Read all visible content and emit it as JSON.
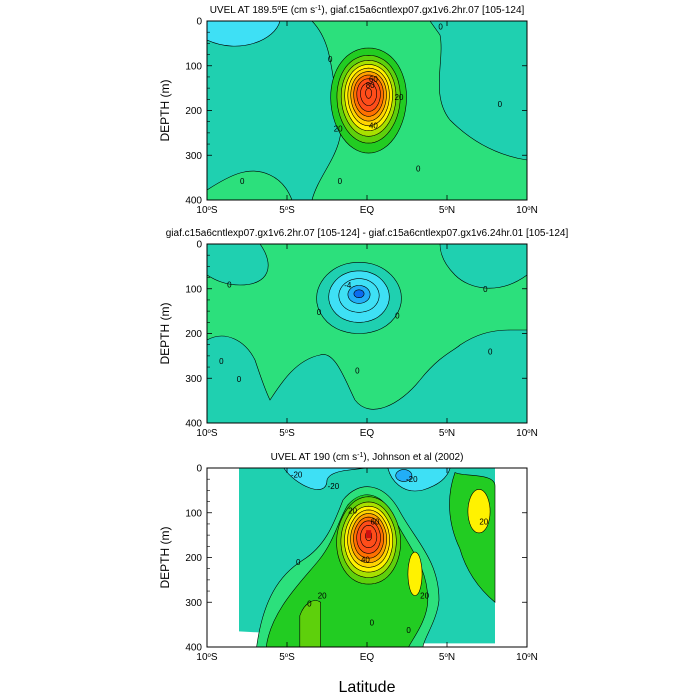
{
  "chart_data": [
    {
      "type": "contour",
      "title_pre": "UVEL AT 189.5",
      "title_deg": "o",
      "title_mid": "E (cm s",
      "title_sup": "-1",
      "title_post": "), giaf.c15a6cntlexp07.gx1v6.2hr.07 [105-124]",
      "ylabel": "DEPTH (m)",
      "xlim": [
        -10,
        10
      ],
      "ylim": [
        400,
        0
      ],
      "y_ticks": [
        "0",
        "100",
        "200",
        "300",
        "400"
      ],
      "x_ticks": [
        {
          "num": "10",
          "deg": "o",
          "hemi": "S"
        },
        {
          "num": "5",
          "deg": "o",
          "hemi": "S"
        },
        {
          "num": "EQ",
          "deg": "",
          "hemi": ""
        },
        {
          "num": "5",
          "deg": "o",
          "hemi": "N"
        },
        {
          "num": "10",
          "deg": "o",
          "hemi": "N"
        }
      ],
      "jet": {
        "lat": 0.1,
        "depth": 160,
        "peak": 100,
        "lat_sigma": 1.1,
        "depth_sigma": 55,
        "interval": 10
      },
      "contour_labels": [
        {
          "text": "0",
          "lat": 4.6,
          "depth": 12
        },
        {
          "text": "0",
          "lat": -2.3,
          "depth": 85
        },
        {
          "text": "0",
          "lat": 8.3,
          "depth": 185
        },
        {
          "text": "0",
          "lat": -7.8,
          "depth": 358
        },
        {
          "text": "0",
          "lat": -1.7,
          "depth": 358
        },
        {
          "text": "0",
          "lat": 3.2,
          "depth": 330
        },
        {
          "text": "20",
          "lat": 2.0,
          "depth": 170
        },
        {
          "text": "20",
          "lat": -1.8,
          "depth": 240
        },
        {
          "text": "40",
          "lat": 0.4,
          "depth": 233
        },
        {
          "text": "60",
          "lat": 0.4,
          "depth": 130
        },
        {
          "text": "80",
          "lat": 0.2,
          "depth": 143
        }
      ]
    },
    {
      "type": "contour",
      "title_pre": "giaf.c15a6cntlexp07.gx1v6.2hr.07 [105-124] - giaf.c15a6cntlexp07.gx1v6.24hr.01 [105-124]",
      "title_deg": "",
      "title_mid": "",
      "title_sup": "",
      "title_post": "",
      "ylabel": "DEPTH (m)",
      "xlim": [
        -10,
        10
      ],
      "ylim": [
        400,
        0
      ],
      "y_ticks": [
        "0",
        "100",
        "200",
        "300",
        "400"
      ],
      "x_ticks": [
        {
          "num": "10",
          "deg": "o",
          "hemi": "S"
        },
        {
          "num": "5",
          "deg": "o",
          "hemi": "S"
        },
        {
          "num": "EQ",
          "deg": "",
          "hemi": ""
        },
        {
          "num": "5",
          "deg": "o",
          "hemi": "N"
        },
        {
          "num": "10",
          "deg": "o",
          "hemi": "N"
        }
      ],
      "core": {
        "lat": -0.5,
        "depth": 110,
        "trough": -10,
        "interval": 2
      },
      "contour_labels": [
        {
          "text": "-4",
          "lat": -1.2,
          "depth": 92
        },
        {
          "text": "0",
          "lat": -8.6,
          "depth": 90
        },
        {
          "text": "0",
          "lat": 7.4,
          "depth": 100
        },
        {
          "text": "0",
          "lat": -3.0,
          "depth": 152
        },
        {
          "text": "0",
          "lat": 1.9,
          "depth": 160
        },
        {
          "text": "0",
          "lat": -9.1,
          "depth": 262
        },
        {
          "text": "0",
          "lat": -8.0,
          "depth": 302
        },
        {
          "text": "0",
          "lat": 7.7,
          "depth": 240
        },
        {
          "text": "0",
          "lat": -0.6,
          "depth": 283
        }
      ]
    },
    {
      "type": "contour",
      "title_pre": "UVEL AT 190 (cm s",
      "title_deg": "",
      "title_mid": "",
      "title_sup": "-1",
      "title_post": "), Johnson et al (2002)",
      "ylabel": "DEPTH (m)",
      "xlim": [
        -10,
        10
      ],
      "ylim": [
        400,
        0
      ],
      "y_ticks": [
        "0",
        "100",
        "200",
        "300",
        "400"
      ],
      "x_ticks": [
        {
          "num": "10",
          "deg": "o",
          "hemi": "S"
        },
        {
          "num": "5",
          "deg": "o",
          "hemi": "S"
        },
        {
          "num": "EQ",
          "deg": "",
          "hemi": ""
        },
        {
          "num": "5",
          "deg": "o",
          "hemi": "N"
        },
        {
          "num": "10",
          "deg": "o",
          "hemi": "N"
        }
      ],
      "data_extent": {
        "lat_min": -8,
        "lat_max": 8,
        "depth_max": 400
      },
      "jet": {
        "lat": 0.1,
        "depth": 150,
        "peak": 100,
        "lat_sigma": 1.1,
        "depth_sigma": 55,
        "interval": 10
      },
      "contour_labels": [
        {
          "text": "-20",
          "lat": -4.4,
          "depth": 15
        },
        {
          "text": "-20",
          "lat": -2.1,
          "depth": 40
        },
        {
          "text": "-20",
          "lat": 2.8,
          "depth": 25
        },
        {
          "text": "20",
          "lat": -0.9,
          "depth": 95
        },
        {
          "text": "20",
          "lat": 7.3,
          "depth": 120
        },
        {
          "text": "20",
          "lat": -2.8,
          "depth": 285
        },
        {
          "text": "20",
          "lat": 3.6,
          "depth": 285
        },
        {
          "text": "40",
          "lat": -0.1,
          "depth": 205
        },
        {
          "text": "60",
          "lat": 0.5,
          "depth": 120
        },
        {
          "text": "0",
          "lat": -4.3,
          "depth": 210
        },
        {
          "text": "0",
          "lat": -3.6,
          "depth": 303
        },
        {
          "text": "0",
          "lat": 0.3,
          "depth": 345
        },
        {
          "text": "0",
          "lat": 2.6,
          "depth": 362
        }
      ]
    }
  ],
  "palette": [
    "#0b6cf0",
    "#22aef7",
    "#3ee0f5",
    "#1fd0b0",
    "#2ce07c",
    "#22cc22",
    "#5ed00c",
    "#a8e000",
    "#fff200",
    "#ffd400",
    "#ffa000",
    "#ff7000",
    "#ff4d1a"
  ],
  "xlabel": "Latitude"
}
